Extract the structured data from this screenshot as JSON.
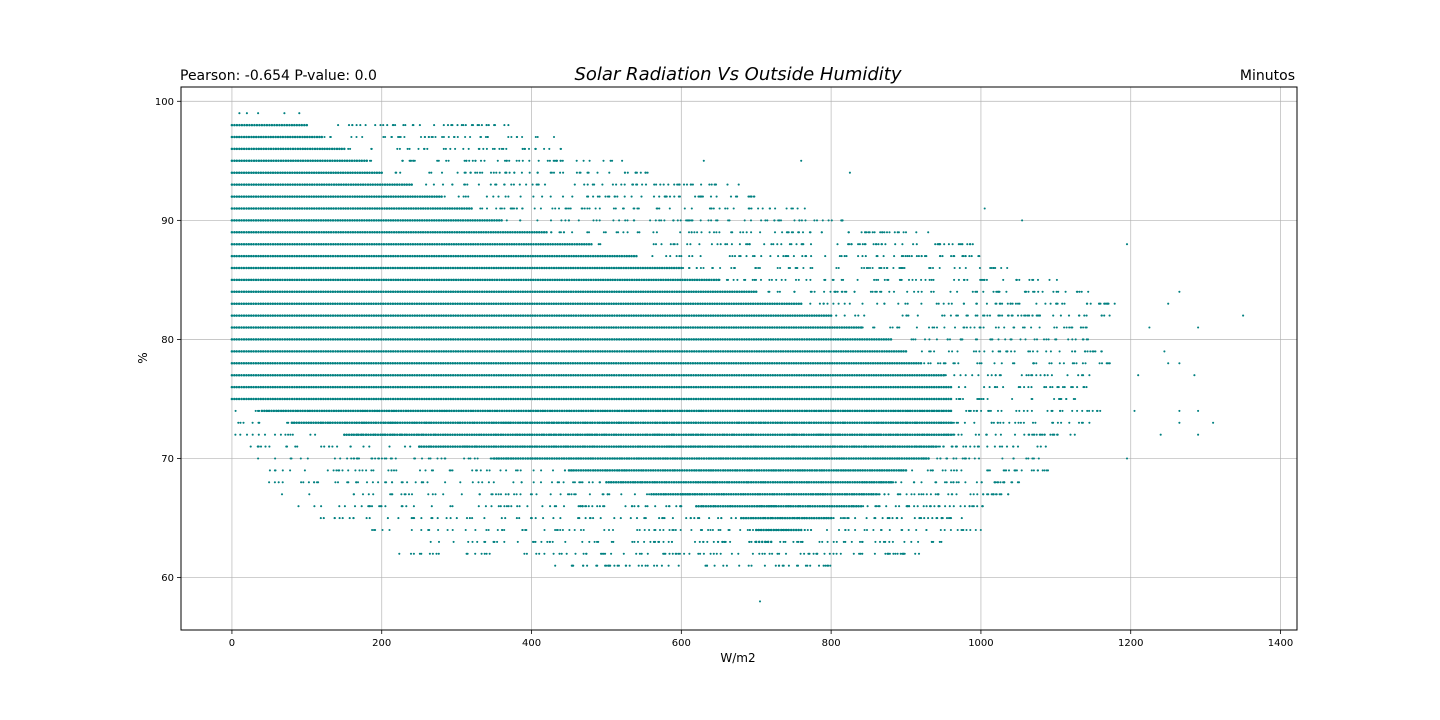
{
  "chart_data": {
    "type": "scatter",
    "title": "Solar Radiation Vs Outside Humidity",
    "left_title": "Pearson: -0.654 P-value: 0.0",
    "right_title": "Minutos",
    "xlabel": "W/m2",
    "ylabel": "%",
    "xlim": [
      -68,
      1422
    ],
    "ylim": [
      55.6,
      101.2
    ],
    "xticks": [
      0,
      200,
      400,
      600,
      800,
      1000,
      1200,
      1400
    ],
    "yticks": [
      60,
      70,
      80,
      90,
      100
    ],
    "grid": true,
    "marker_color": "#008080",
    "bands": [
      {
        "y": 98,
        "dense": [
          0,
          100
        ],
        "sparse": [
          100,
          370
        ]
      },
      {
        "y": 97,
        "dense": [
          0,
          120
        ],
        "sparse": [
          120,
          420
        ]
      },
      {
        "y": 96,
        "dense": [
          0,
          150
        ],
        "sparse": [
          150,
          440
        ]
      },
      {
        "y": 95,
        "dense": [
          0,
          180
        ],
        "sparse": [
          180,
          530
        ]
      },
      {
        "y": 94,
        "dense": [
          0,
          200
        ],
        "sparse": [
          200,
          560
        ]
      },
      {
        "y": 93,
        "dense": [
          0,
          240
        ],
        "sparse": [
          240,
          680
        ]
      },
      {
        "y": 92,
        "dense": [
          0,
          280
        ],
        "sparse": [
          280,
          700
        ]
      },
      {
        "y": 91,
        "dense": [
          0,
          320
        ],
        "sparse": [
          320,
          780
        ]
      },
      {
        "y": 90,
        "dense": [
          0,
          360
        ],
        "sparse": [
          360,
          830
        ]
      },
      {
        "y": 89,
        "dense": [
          0,
          420
        ],
        "sparse": [
          420,
          940
        ]
      },
      {
        "y": 88,
        "dense": [
          0,
          480
        ],
        "sparse": [
          480,
          990
        ]
      },
      {
        "y": 87,
        "dense": [
          0,
          540
        ],
        "sparse": [
          540,
          1010
        ]
      },
      {
        "y": 86,
        "dense": [
          0,
          600
        ],
        "sparse": [
          600,
          1060
        ]
      },
      {
        "y": 85,
        "dense": [
          0,
          650
        ],
        "sparse": [
          650,
          1110
        ]
      },
      {
        "y": 84,
        "dense": [
          0,
          700
        ],
        "sparse": [
          700,
          1160
        ]
      },
      {
        "y": 83,
        "dense": [
          0,
          760
        ],
        "sparse": [
          760,
          1180
        ]
      },
      {
        "y": 82,
        "dense": [
          0,
          800
        ],
        "sparse": [
          800,
          1190
        ]
      },
      {
        "y": 81,
        "dense": [
          0,
          840
        ],
        "sparse": [
          840,
          1160
        ]
      },
      {
        "y": 80,
        "dense": [
          0,
          880
        ],
        "sparse": [
          880,
          1150
        ]
      },
      {
        "y": 79,
        "dense": [
          0,
          900
        ],
        "sparse": [
          900,
          1170
        ]
      },
      {
        "y": 78,
        "dense": [
          0,
          920
        ],
        "sparse": [
          920,
          1180
        ]
      },
      {
        "y": 77,
        "dense": [
          0,
          950
        ],
        "sparse": [
          950,
          1150
        ]
      },
      {
        "y": 76,
        "dense": [
          0,
          960
        ],
        "sparse": [
          960,
          1150
        ]
      },
      {
        "y": 75,
        "dense": [
          0,
          960
        ],
        "sparse": [
          960,
          1140
        ]
      },
      {
        "y": 74,
        "dense": [
          40,
          960
        ],
        "sparse": [
          0,
          1160
        ]
      },
      {
        "y": 73,
        "dense": [
          80,
          960
        ],
        "sparse": [
          0,
          1150
        ]
      },
      {
        "y": 72,
        "dense": [
          150,
          960
        ],
        "sparse": [
          0,
          1130
        ]
      },
      {
        "y": 71,
        "dense": [
          250,
          940
        ],
        "sparse": [
          0,
          1100
        ]
      },
      {
        "y": 70,
        "dense": [
          350,
          930
        ],
        "sparse": [
          30,
          1080
        ]
      },
      {
        "y": 69,
        "dense": [
          450,
          900
        ],
        "sparse": [
          50,
          1090
        ]
      },
      {
        "y": 68,
        "dense": [
          500,
          880
        ],
        "sparse": [
          40,
          1060
        ]
      },
      {
        "y": 67,
        "dense": [
          560,
          860
        ],
        "sparse": [
          60,
          1040
        ]
      },
      {
        "y": 66,
        "dense": [
          620,
          840
        ],
        "sparse": [
          60,
          1020
        ]
      },
      {
        "y": 65,
        "dense": [
          680,
          800
        ],
        "sparse": [
          110,
          980
        ]
      },
      {
        "y": 64,
        "dense": [
          700,
          760
        ],
        "sparse": [
          180,
          1000
        ]
      },
      {
        "y": 63,
        "dense": [
          700,
          720
        ],
        "sparse": [
          260,
          950
        ]
      },
      {
        "y": 62,
        "dense": [
          0,
          0
        ],
        "sparse": [
          220,
          930
        ]
      },
      {
        "y": 61,
        "dense": [
          0,
          0
        ],
        "sparse": [
          420,
          800
        ]
      }
    ],
    "outliers": [
      [
        10,
        99
      ],
      [
        20,
        99
      ],
      [
        35,
        99
      ],
      [
        70,
        99
      ],
      [
        90,
        99
      ],
      [
        20,
        98
      ],
      [
        350,
        98
      ],
      [
        430,
        97
      ],
      [
        630,
        95
      ],
      [
        760,
        95
      ],
      [
        825,
        94
      ],
      [
        1005,
        91
      ],
      [
        1055,
        90
      ],
      [
        1195,
        88
      ],
      [
        1265,
        84
      ],
      [
        1250,
        83
      ],
      [
        1350,
        82
      ],
      [
        1290,
        81
      ],
      [
        1225,
        81
      ],
      [
        1245,
        79
      ],
      [
        1250,
        78
      ],
      [
        1265,
        78
      ],
      [
        1285,
        77
      ],
      [
        1210,
        77
      ],
      [
        1205,
        74
      ],
      [
        1265,
        74
      ],
      [
        1290,
        74
      ],
      [
        1240,
        72
      ],
      [
        1265,
        73
      ],
      [
        1290,
        72
      ],
      [
        1310,
        73
      ],
      [
        1195,
        70
      ],
      [
        705,
        58
      ],
      [
        690,
        61
      ],
      [
        790,
        61
      ],
      [
        795,
        61
      ]
    ]
  }
}
